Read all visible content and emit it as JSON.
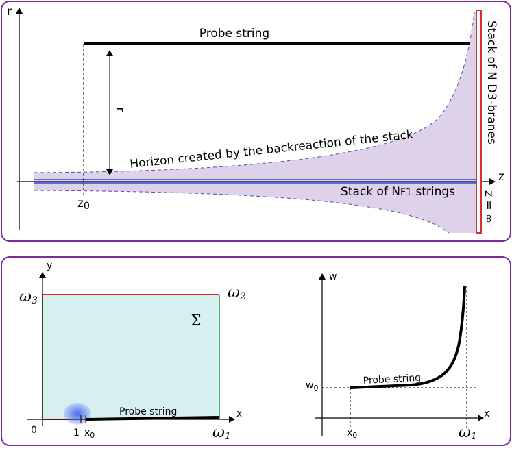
{
  "top_panel": {
    "r_axis": "r",
    "z_axis": "z",
    "probe_label": "Probe string",
    "distance_label": "r",
    "horizon_label": "Horizon created by the backreaction of the stack",
    "z0_label": {
      "main": "z",
      "sub": "0"
    },
    "strings_label": {
      "prefix": "Stack of N",
      "sub": "F1",
      "suffix": " strings"
    },
    "branes_label": "Stack of N D3-branes",
    "z_infinity": "z = ∞"
  },
  "bottom_left": {
    "y_axis": "y",
    "x_axis": "x",
    "omega3": {
      "main": "ω",
      "sub": "3"
    },
    "omega2": {
      "main": "ω",
      "sub": "2"
    },
    "omega1": {
      "main": "ω",
      "sub": "1"
    },
    "sigma": "Σ",
    "origin": "0",
    "one": "1",
    "x0": {
      "main": "x",
      "sub": "0"
    },
    "probe_label": "Probe string"
  },
  "bottom_right": {
    "w_axis": "w",
    "x_axis": "x",
    "w0": {
      "main": "w",
      "sub": "0"
    },
    "x0": {
      "main": "x",
      "sub": "0"
    },
    "omega1": {
      "main": "ω",
      "sub": "1"
    },
    "probe_label": "Probe string"
  }
}
